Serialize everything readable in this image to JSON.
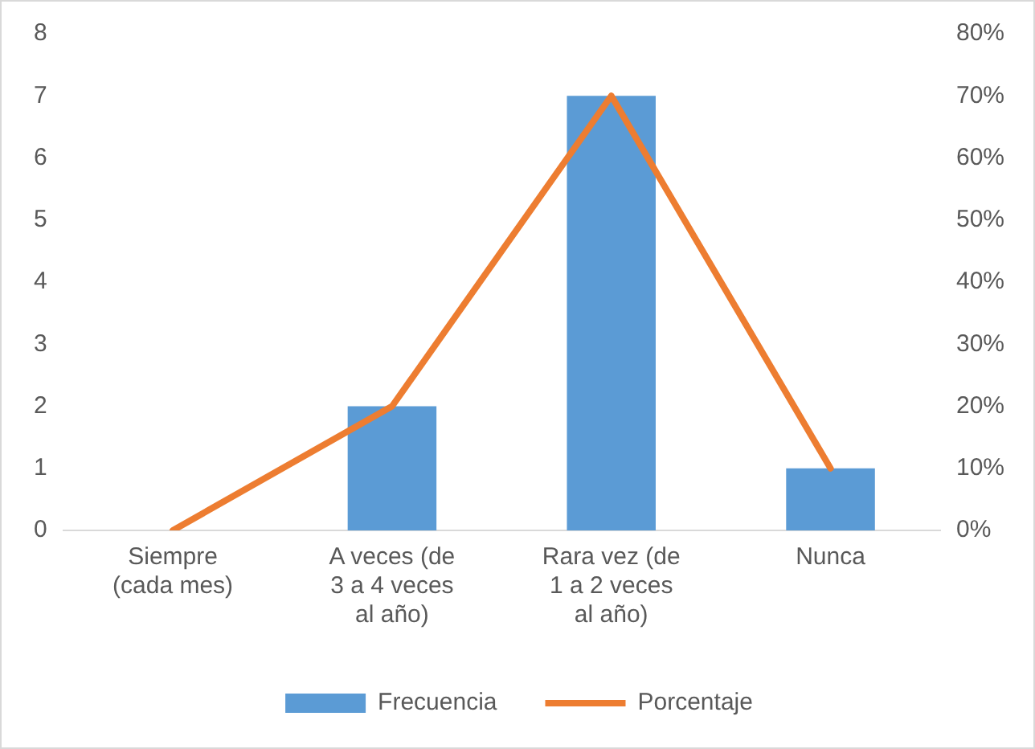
{
  "chart_data": {
    "type": "bar",
    "categories": [
      "Siempre (cada mes)",
      "A veces (de 3 a 4 veces al año)",
      "Rara vez (de 1 a 2 veces al año)",
      "Nunca"
    ],
    "series": [
      {
        "name": "Frecuencia",
        "color": "#5b9bd5",
        "values": [
          0,
          2,
          7,
          1
        ]
      },
      {
        "name": "Porcentaje",
        "type": "line",
        "axis": "y2",
        "color": "#ed7d31",
        "values": [
          0,
          20,
          70,
          10
        ]
      }
    ],
    "ylim": [
      0,
      8
    ],
    "yticks": [
      0,
      1,
      2,
      3,
      4,
      5,
      6,
      7,
      8
    ],
    "y2lim": [
      0,
      80
    ],
    "y2ticks": [
      {
        "value": 0,
        "label": "0%"
      },
      {
        "value": 10,
        "label": "10%"
      },
      {
        "value": 20,
        "label": "20%"
      },
      {
        "value": 30,
        "label": "30%"
      },
      {
        "value": 40,
        "label": "40%"
      },
      {
        "value": 50,
        "label": "50%"
      },
      {
        "value": 60,
        "label": "60%"
      },
      {
        "value": 70,
        "label": "70%"
      },
      {
        "value": 80,
        "label": "80%"
      }
    ],
    "grid": false,
    "legend": "bottom",
    "marker": "none",
    "line_style": "solid"
  }
}
